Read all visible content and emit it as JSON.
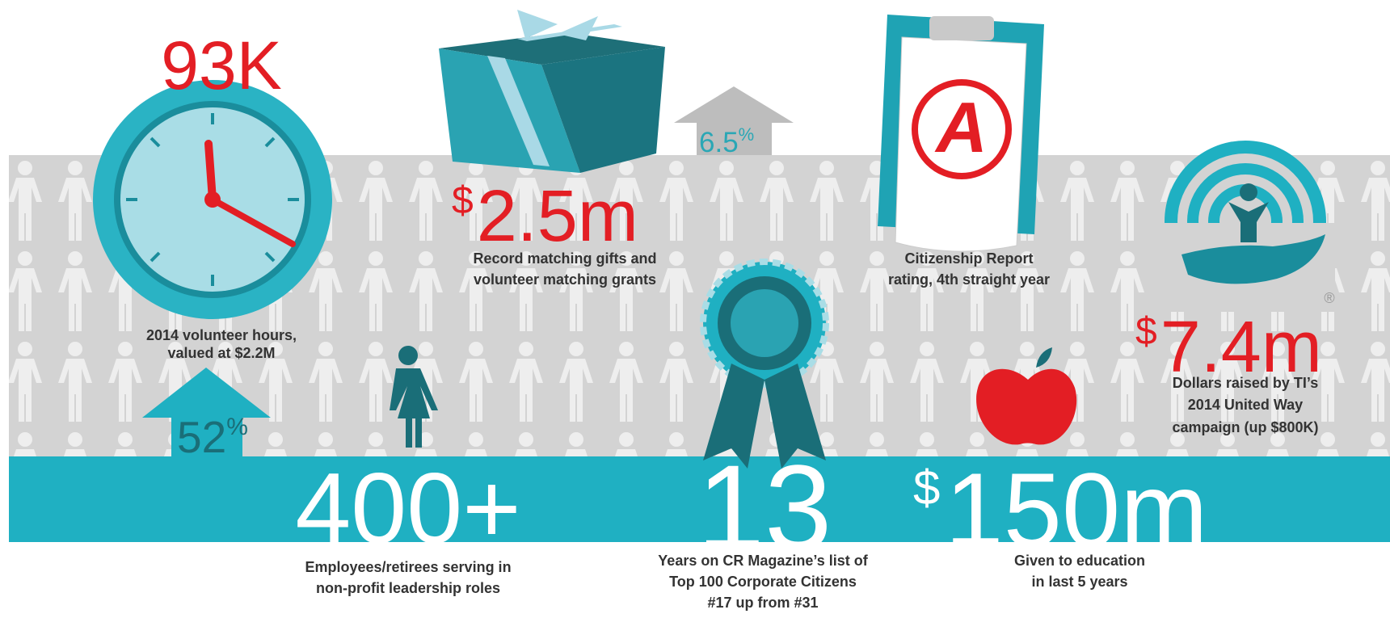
{
  "volunteer_hours": {
    "value": "93K",
    "caption": [
      "2014 volunteer hours,",
      "valued at $2.2M"
    ]
  },
  "volunteer_growth": {
    "value": "52",
    "unit": "%"
  },
  "matching_gifts": {
    "prefix": "$",
    "value": "2.5m",
    "caption": [
      "Record matching gifts and",
      "volunteer matching grants"
    ]
  },
  "matching_growth": {
    "value": "6.5",
    "unit": "%"
  },
  "citizenship": {
    "grade": "A",
    "caption": [
      "Citizenship Report",
      "rating, 4th straight year"
    ]
  },
  "united_way": {
    "prefix": "$",
    "value": "7.4m",
    "registered": "®",
    "caption": [
      "Dollars raised by TI’s",
      "2014 United Way",
      "campaign (up $800K)"
    ]
  },
  "leadership": {
    "value": "400+",
    "caption": [
      "Employees/retirees serving in",
      "non-profit leadership roles"
    ]
  },
  "cr_magazine": {
    "value": "13",
    "caption": [
      "Years on CR Magazine’s list of",
      "Top 100 Corporate Citizens",
      "#17 up from #31"
    ]
  },
  "education": {
    "prefix": "$",
    "value": "150m",
    "caption": [
      "Given to education",
      "in last 5 years"
    ]
  }
}
